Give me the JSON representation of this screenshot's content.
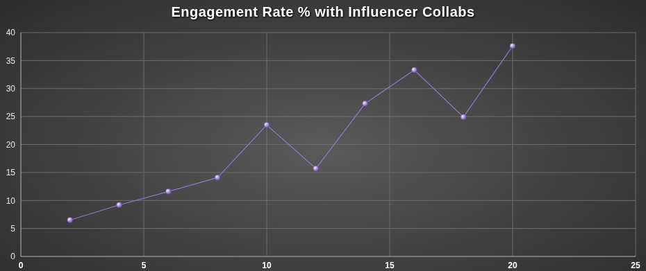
{
  "chart_data": {
    "type": "line",
    "title": "Engagement Rate % with Influencer Collabs",
    "x": [
      2,
      4,
      6,
      8,
      10,
      12,
      14,
      16,
      18,
      20
    ],
    "values": [
      6.5,
      9.2,
      11.6,
      14.1,
      23.5,
      15.7,
      27.3,
      33.3,
      24.9,
      37.6
    ],
    "color": "#8e7cc8",
    "marker": "circle",
    "xlim": [
      0,
      25
    ],
    "xticks": [
      0,
      5,
      10,
      15,
      20,
      25
    ],
    "ylim": [
      0,
      40
    ],
    "yticks": [
      0,
      5,
      10,
      15,
      20,
      25,
      30,
      35,
      40
    ],
    "grid": true
  }
}
